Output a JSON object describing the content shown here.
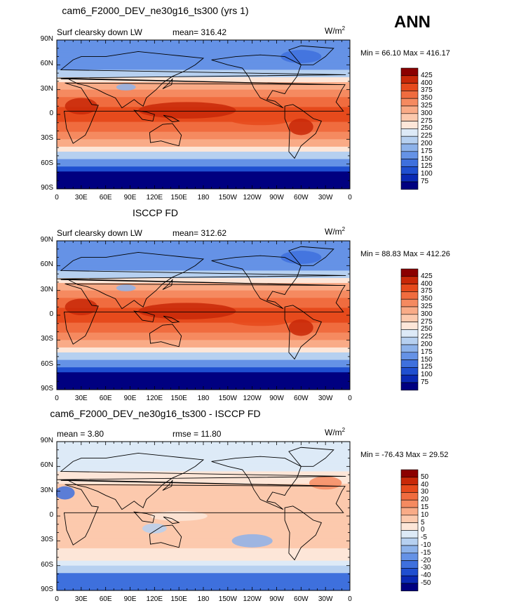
{
  "season_label": "ANN",
  "chart_data": [
    {
      "type": "heatmap",
      "title": "cam6_F2000_DEV_ne30g16_ts300 (yrs 1)",
      "left_label": "Surf clearsky down LW",
      "center_label": "mean= 316.42",
      "units": "W/m",
      "units_sup": "2",
      "minmax": "Min =  66.10 Max = 416.17",
      "colorbar_labels": [
        "425",
        "400",
        "375",
        "350",
        "325",
        "300",
        "275",
        "250",
        "225",
        "200",
        "175",
        "150",
        "125",
        "100",
        "75"
      ],
      "colors": [
        "#8b0000",
        "#c82808",
        "#e64a1c",
        "#f06c3f",
        "#f58a60",
        "#f9ab87",
        "#fcc9ad",
        "#fde6d8",
        "#ddeaf7",
        "#b6d0f0",
        "#8db2ea",
        "#6592e6",
        "#3e70dd",
        "#1f4fd0",
        "#0a29b4",
        "#000080"
      ],
      "lat_labels": [
        "90N",
        "60N",
        "30N",
        "0",
        "30S",
        "60S",
        "90S"
      ],
      "lon_labels": [
        "0",
        "30E",
        "60E",
        "90E",
        "120E",
        "150E",
        "180",
        "150W",
        "120W",
        "90W",
        "60W",
        "30W",
        "0"
      ]
    },
    {
      "type": "heatmap",
      "title": "ISCCP FD",
      "left_label": "Surf clearsky down LW",
      "center_label": "mean= 312.62",
      "units": "W/m",
      "units_sup": "2",
      "minmax": "Min =  88.83 Max = 412.26",
      "colorbar_labels": [
        "425",
        "400",
        "375",
        "350",
        "325",
        "300",
        "275",
        "250",
        "225",
        "200",
        "175",
        "150",
        "125",
        "100",
        "75"
      ],
      "colors": [
        "#8b0000",
        "#c82808",
        "#e64a1c",
        "#f06c3f",
        "#f58a60",
        "#f9ab87",
        "#fcc9ad",
        "#fde6d8",
        "#ddeaf7",
        "#b6d0f0",
        "#8db2ea",
        "#6592e6",
        "#3e70dd",
        "#1f4fd0",
        "#0a29b4",
        "#000080"
      ],
      "lat_labels": [
        "90N",
        "60N",
        "30N",
        "0",
        "30S",
        "60S",
        "90S"
      ],
      "lon_labels": [
        "0",
        "30E",
        "60E",
        "90E",
        "120E",
        "150E",
        "180",
        "150W",
        "120W",
        "90W",
        "60W",
        "30W",
        "0"
      ]
    },
    {
      "type": "heatmap",
      "title": "cam6_F2000_DEV_ne30g16_ts300 - ISCCP FD",
      "left_label": "mean =    3.80",
      "center_label": "rmse =   11.80",
      "units": "W/m",
      "units_sup": "2",
      "minmax": "Min = -76.43 Max =  29.52",
      "colorbar_labels": [
        "50",
        "40",
        "30",
        "20",
        "15",
        "10",
        "5",
        "0",
        "-5",
        "-10",
        "-15",
        "-20",
        "-30",
        "-40",
        "-50"
      ],
      "colors": [
        "#8b0000",
        "#c82808",
        "#e64a1c",
        "#f06c3f",
        "#f58a60",
        "#f9ab87",
        "#fcc9ad",
        "#fde6d8",
        "#ddeaf7",
        "#b6d0f0",
        "#8db2ea",
        "#6592e6",
        "#3e70dd",
        "#1f4fd0",
        "#0a29b4",
        "#000080"
      ],
      "lat_labels": [
        "90N",
        "60N",
        "30N",
        "0",
        "30S",
        "60S",
        "90S"
      ],
      "lon_labels": [
        "0",
        "30E",
        "60E",
        "90E",
        "120E",
        "150E",
        "180",
        "150W",
        "120W",
        "90W",
        "60W",
        "30W",
        "0"
      ]
    }
  ]
}
